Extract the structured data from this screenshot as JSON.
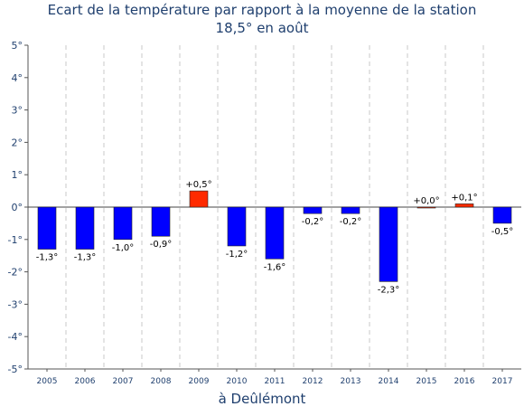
{
  "chart_data": {
    "type": "bar",
    "title": "Ecart de la température par rapport à la moyenne de la station",
    "subtitle": "18,5° en août",
    "xlabel": "à Deûlémont",
    "ylabel": "",
    "categories": [
      "2005",
      "2006",
      "2007",
      "2008",
      "2009",
      "2010",
      "2011",
      "2012",
      "2013",
      "2014",
      "2015",
      "2016",
      "2017"
    ],
    "values": [
      -1.3,
      -1.3,
      -1.0,
      -0.9,
      0.5,
      -1.2,
      -1.6,
      -0.2,
      -0.2,
      -2.3,
      0.0,
      0.1,
      -0.5
    ],
    "data_labels": [
      "-1,3°",
      "-1,3°",
      "-1,0°",
      "-0,9°",
      "+0,5°",
      "-1,2°",
      "-1,6°",
      "-0,2°",
      "-0,2°",
      "-2,3°",
      "+0,0°",
      "+0,1°",
      "-0,5°"
    ],
    "ylim": [
      -5,
      5
    ],
    "y_ticks": [
      5,
      4,
      3,
      2,
      1,
      0,
      -1,
      -2,
      -3,
      -4,
      -5
    ],
    "y_tick_labels": [
      "5°",
      "4°",
      "3°",
      "2°",
      "1°",
      "0°",
      "-1°",
      "-2°",
      "-3°",
      "-4°",
      "-5°"
    ],
    "grid": "vertical dashed",
    "colors": {
      "positive": "#ff2a00",
      "negative": "#0000ff",
      "text": "#1f3f6e",
      "grid": "#c8c8c8"
    }
  }
}
